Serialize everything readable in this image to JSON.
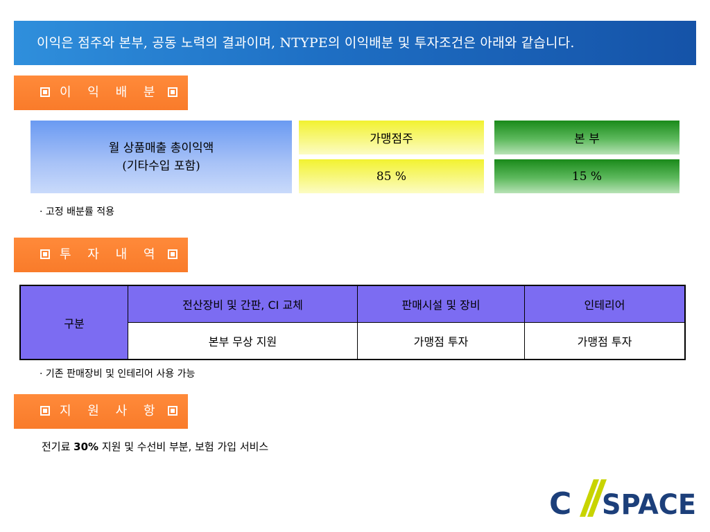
{
  "banner": {
    "text": "이익은 점주와 본부, 공동 노력의 결과이며, NTYPE의 이익배분 및 투자조건은 아래와 같습니다."
  },
  "sections": {
    "profit": "이 익 배 분",
    "investment": "투 자 내 역",
    "support": "지 원 사 항"
  },
  "profit_table": {
    "basis_line1": "월 상품매출 총이익액",
    "basis_line2": "(기타수입 포함)",
    "franchisee_header": "가맹점주",
    "franchisee_share": "85 %",
    "hq_header": "본 부",
    "hq_share": "15 %"
  },
  "profit_note": "· 고정 배분률 적용",
  "investment_table": {
    "row_header": "구분",
    "columns": [
      "전산장비 및 간판, CI 교체",
      "판매시설 및 장비",
      "인테리어"
    ],
    "values": [
      "본부 무상 지원",
      "가맹점 투자",
      "가맹점 투자"
    ]
  },
  "investment_note": "· 기존 판매장비 및 인테리어 사용 가능",
  "support": {
    "prefix": "전기료 ",
    "bold": "30%",
    "suffix": " 지원 및 수선비 부분, 보험 가입 서비스"
  },
  "logo": {
    "left": "C",
    "right": "SPACE"
  },
  "colors": {
    "banner": "#1e6fc4",
    "section_tab": "#f97b2a",
    "table_header": "#7c6cf2",
    "logo_text": "#1c3f7a",
    "logo_slash": "#c8d400"
  }
}
